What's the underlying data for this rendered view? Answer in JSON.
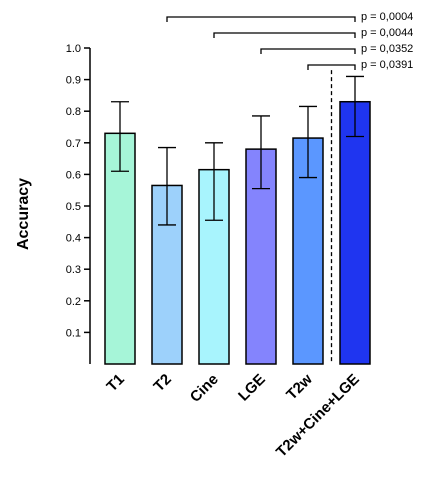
{
  "chart_data": {
    "type": "bar",
    "categories": [
      "T1",
      "T2",
      "Cine",
      "LGE",
      "T2w",
      "T2w+Cine+LGE"
    ],
    "values": [
      0.73,
      0.565,
      0.615,
      0.68,
      0.715,
      0.83
    ],
    "error_low": [
      0.61,
      0.44,
      0.455,
      0.555,
      0.59,
      0.72
    ],
    "error_high": [
      0.83,
      0.685,
      0.7,
      0.785,
      0.815,
      0.91
    ],
    "colors": [
      "#a6f5d8",
      "#9dd1fb",
      "#a8f4fd",
      "#8484fd",
      "#5b97ff",
      "#1f35f0"
    ],
    "ylabel": "Accuracy",
    "ylim": [
      0,
      1.0
    ],
    "yticks": [
      "0.1",
      "0.2",
      "0.3",
      "0.4",
      "0.5",
      "0.6",
      "0.7",
      "0.8",
      "0.9",
      "1.0"
    ],
    "grid": false,
    "significance": [
      {
        "from": "T2",
        "to": "T2w+Cine+LGE",
        "label": "p = 0,0004"
      },
      {
        "from": "Cine",
        "to": "T2w+Cine+LGE",
        "label": "p = 0,0044"
      },
      {
        "from": "LGE",
        "to": "T2w+Cine+LGE",
        "label": "p = 0,0352"
      },
      {
        "from": "T2w",
        "to": "T2w+Cine+LGE",
        "label": "p = 0,0391"
      }
    ],
    "separator": {
      "between": [
        "T2w",
        "T2w+Cine+LGE"
      ],
      "style": "dashed"
    }
  }
}
